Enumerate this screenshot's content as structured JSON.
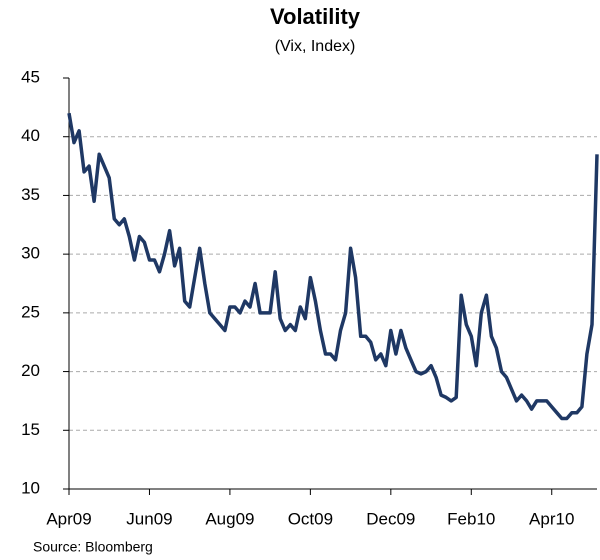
{
  "chart_data": {
    "type": "line",
    "title": "Volatility",
    "subtitle": "(Vix, Index)",
    "source": "Source: Bloomberg",
    "categories": [
      "Apr09",
      null,
      null,
      null,
      null,
      null,
      null,
      null,
      null,
      null,
      null,
      null,
      null,
      null,
      null,
      null,
      "Jun09",
      null,
      null,
      null,
      null,
      null,
      null,
      null,
      null,
      null,
      null,
      null,
      null,
      null,
      null,
      null,
      "Aug09",
      null,
      null,
      null,
      null,
      null,
      null,
      null,
      null,
      null,
      null,
      null,
      null,
      null,
      null,
      null,
      "Oct09",
      null,
      null,
      null,
      null,
      null,
      null,
      null,
      null,
      null,
      null,
      null,
      null,
      null,
      null,
      null,
      "Dec09",
      null,
      null,
      null,
      null,
      null,
      null,
      null,
      null,
      null,
      null,
      null,
      null,
      null,
      null,
      null,
      "Feb10",
      null,
      null,
      null,
      null,
      null,
      null,
      null,
      null,
      null,
      null,
      null,
      null,
      null,
      null,
      null,
      "Apr10",
      null,
      null,
      null,
      null,
      null,
      null,
      null,
      null,
      null
    ],
    "series": [
      {
        "name": "Vix",
        "color": "#1f3864",
        "values": [
          42,
          39.5,
          40.5,
          37,
          37.5,
          34.5,
          38.5,
          37.5,
          36.5,
          33,
          32.5,
          33,
          31.5,
          29.5,
          31.5,
          31,
          29.5,
          29.5,
          28.5,
          30,
          32,
          29,
          30.5,
          26,
          25.5,
          28,
          30.5,
          27.5,
          25,
          24.5,
          24,
          23.5,
          25.5,
          25.5,
          25,
          26,
          25.5,
          27.5,
          25,
          25,
          25,
          28.5,
          24.5,
          23.5,
          24,
          23.5,
          25.5,
          24.5,
          28,
          26,
          23.5,
          21.5,
          21.5,
          21,
          23.5,
          25,
          30.5,
          28,
          23,
          23,
          22.5,
          21,
          21.5,
          20.5,
          23.5,
          21.5,
          23.5,
          22,
          21,
          20,
          19.8,
          20,
          20.5,
          19.5,
          18,
          17.8,
          17.5,
          17.8,
          26.5,
          24,
          23,
          20.5,
          25,
          26.5,
          23,
          22,
          20,
          19.5,
          18.5,
          17.5,
          18,
          17.5,
          16.8,
          17.5,
          17.5,
          17.5,
          17,
          16.5,
          16,
          16,
          16.5,
          16.5,
          17,
          21.5,
          24,
          38.5
        ]
      }
    ],
    "ylim": [
      10,
      45
    ],
    "yticks": [
      10,
      15,
      20,
      25,
      30,
      35,
      40,
      45
    ],
    "grid": true
  }
}
